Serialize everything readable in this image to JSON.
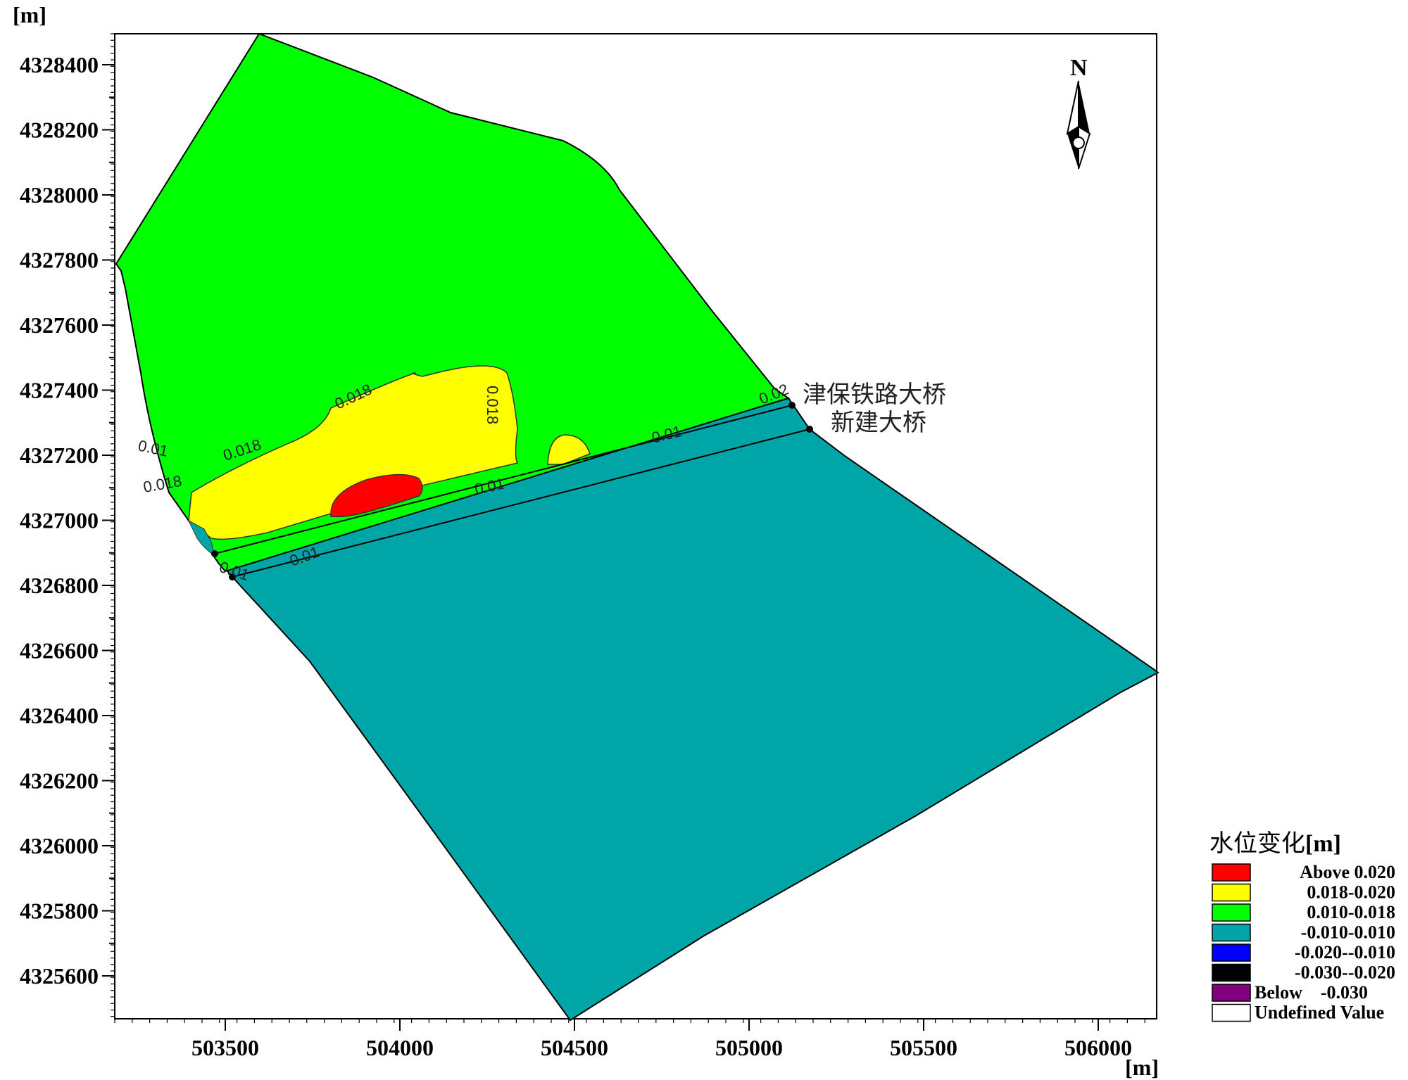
{
  "axes": {
    "x_unit": "[m]",
    "y_unit": "[m]",
    "x_ticks": [
      "503500",
      "504000",
      "504500",
      "505000",
      "505500",
      "506000"
    ],
    "y_ticks": [
      "4328400",
      "4328200",
      "4328000",
      "4327800",
      "4327600",
      "4327400",
      "4327200",
      "4327000",
      "4326800",
      "4326600",
      "4326400",
      "4326200",
      "4326000",
      "4325800",
      "4325600"
    ]
  },
  "north_label": "N",
  "bridges": [
    {
      "name": "津保铁路大桥"
    },
    {
      "name": "新建大桥"
    }
  ],
  "contour_labels": [
    {
      "text": "0.018"
    },
    {
      "text": "0.018"
    },
    {
      "text": "0.018"
    },
    {
      "text": "0.018"
    },
    {
      "text": "0.01"
    },
    {
      "text": "0.01"
    },
    {
      "text": "0.01"
    },
    {
      "text": "0.01"
    },
    {
      "text": "0.01"
    },
    {
      "text": "0.02"
    }
  ],
  "legend": {
    "title": "水位变化",
    "title_unit": "[m]",
    "items": [
      {
        "label": "Above 0.020",
        "color": "#ff0000"
      },
      {
        "label": "0.018-0.020",
        "color": "#ffff00"
      },
      {
        "label": "0.010-0.018",
        "color": "#00ff00"
      },
      {
        "label": "-0.010-0.010",
        "color": "#00a5a8"
      },
      {
        "label": "-0.020--0.010",
        "color": "#0000ff"
      },
      {
        "label": "-0.030--0.020",
        "color": "#000000"
      },
      {
        "label": "Below    -0.030",
        "color": "#800080"
      },
      {
        "label": "Undefined Value",
        "color": "#ffffff"
      }
    ]
  },
  "colors": {
    "green": "#00ff00",
    "teal": "#00a5a8",
    "yellow": "#ffff00",
    "red": "#ff0000"
  }
}
